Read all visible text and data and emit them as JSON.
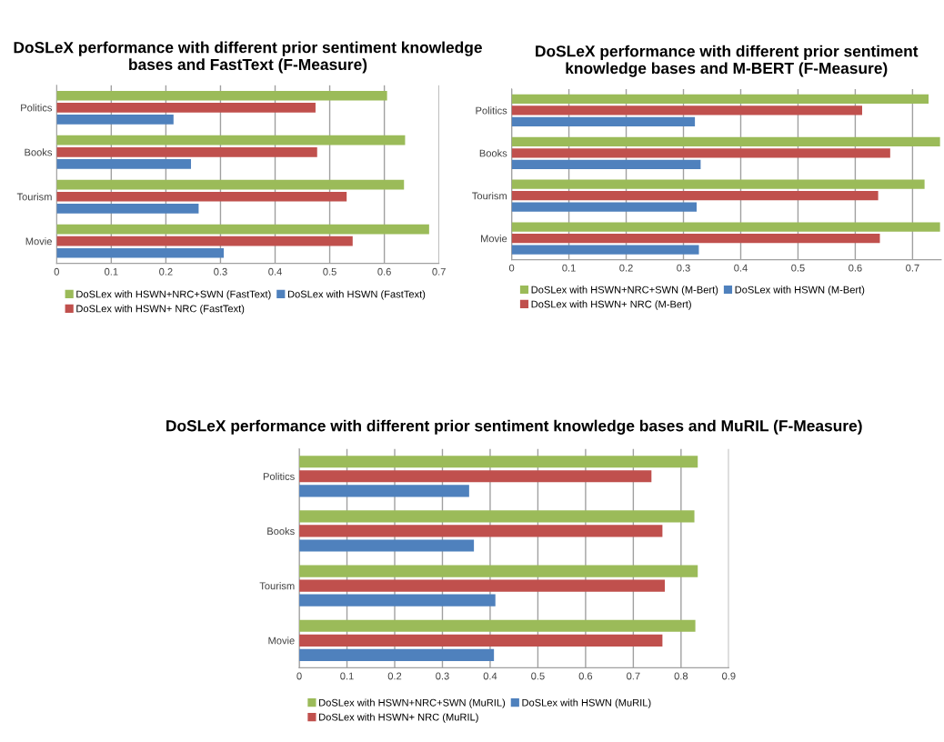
{
  "chart_data": [
    {
      "type": "bar",
      "orientation": "horizontal",
      "title": "DoSLeX performance with different prior sentiment knowledge bases and FastText (F-Measure)",
      "categories": [
        "Politics",
        "Books",
        "Tourism",
        "Movie"
      ],
      "series": [
        {
          "name": "DoSLex with HSWN+NRC+SWN (FastText)",
          "color": "#9bbb59",
          "values": [
            0.605,
            0.638,
            0.636,
            0.682
          ]
        },
        {
          "name": "DoSLex with HSWN+ NRC (FastText)",
          "color": "#c0504d",
          "values": [
            0.474,
            0.477,
            0.531,
            0.542
          ]
        },
        {
          "name": "DoSLex with HSWN (FastText)",
          "color": "#4f81bd",
          "values": [
            0.214,
            0.246,
            0.26,
            0.306
          ]
        }
      ],
      "xlim": [
        0,
        0.7
      ],
      "xticks": [
        0,
        0.1,
        0.2,
        0.3,
        0.4,
        0.5,
        0.6,
        0.7
      ],
      "grid": "x",
      "legend": "bottom"
    },
    {
      "type": "bar",
      "orientation": "horizontal",
      "title": "DoSLeX performance with different prior sentiment knowledge bases and M-BERT (F-Measure)",
      "categories": [
        "Politics",
        "Books",
        "Tourism",
        "Movie"
      ],
      "series": [
        {
          "name": "DoSLex with HSWN+NRC+SWN (M-Bert)",
          "color": "#9bbb59",
          "values": [
            0.728,
            0.748,
            0.721,
            0.748
          ]
        },
        {
          "name": "DoSLex with HSWN+ NRC (M-Bert)",
          "color": "#c0504d",
          "values": [
            0.612,
            0.661,
            0.64,
            0.643
          ]
        },
        {
          "name": "DoSLex with HSWN (M-Bert)",
          "color": "#4f81bd",
          "values": [
            0.32,
            0.33,
            0.323,
            0.327
          ]
        }
      ],
      "xlim": [
        0,
        0.75
      ],
      "xticks": [
        0,
        0.1,
        0.2,
        0.3,
        0.4,
        0.5,
        0.6,
        0.7
      ],
      "grid": "x",
      "legend": "bottom"
    },
    {
      "type": "bar",
      "orientation": "horizontal",
      "title": "DoSLeX performance with different prior sentiment knowledge bases and MuRIL (F-Measure)",
      "categories": [
        "Politics",
        "Books",
        "Tourism",
        "Movie"
      ],
      "series": [
        {
          "name": "DoSLex with HSWN+NRC+SWN (MuRIL)",
          "color": "#9bbb59",
          "values": [
            0.835,
            0.828,
            0.835,
            0.83
          ]
        },
        {
          "name": "DoSLex with HSWN+ NRC (MuRIL)",
          "color": "#c0504d",
          "values": [
            0.738,
            0.761,
            0.766,
            0.761
          ]
        },
        {
          "name": "DoSLex with HSWN (MuRIL)",
          "color": "#4f81bd",
          "values": [
            0.356,
            0.366,
            0.411,
            0.408
          ]
        }
      ],
      "xlim": [
        0,
        0.9
      ],
      "xticks": [
        0,
        0.1,
        0.2,
        0.3,
        0.4,
        0.5,
        0.6,
        0.7,
        0.8,
        0.9
      ],
      "grid": "x",
      "legend": "bottom"
    }
  ]
}
